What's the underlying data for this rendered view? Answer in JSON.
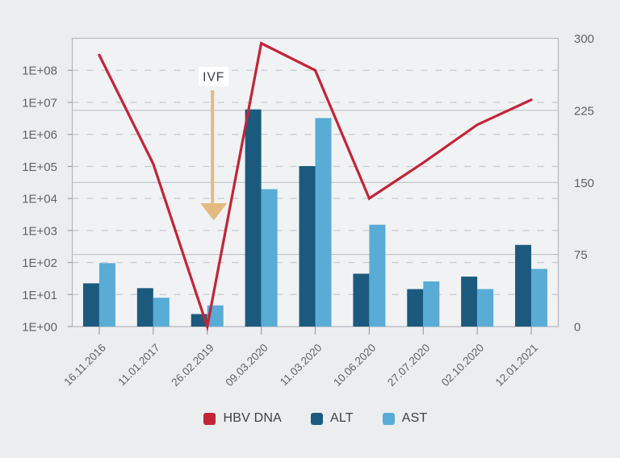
{
  "palette": {
    "page_background": "#ecedef",
    "plot_background": "#f1f2f4",
    "plot_border": "#b3b8bd",
    "dashed_grid": "#c9cdd1",
    "solid_grid": "#b7bcc1",
    "tick": "#9ba1a7",
    "axis_text": "#5e6367",
    "hbv_red": "#c32438",
    "alt_dark_blue": "#1c5a7d",
    "ast_light_blue": "#58acd5",
    "arrow_tan": "#e3ba81",
    "annotation_text": "#33373b",
    "annotation_box": "#ffffff"
  },
  "legend": {
    "items": [
      {
        "label": "HBV DNA",
        "color": "#c32438"
      },
      {
        "label": "ALT",
        "color": "#1c5a7d"
      },
      {
        "label": "AST",
        "color": "#58acd5"
      }
    ]
  },
  "annotation": {
    "text": "IVF",
    "category": "26.02.2019",
    "category_index": 2,
    "arrow_color": "#e3ba81"
  },
  "chart_data": {
    "type": "combo (bar + line)",
    "title": "",
    "categories": [
      "16.11.2016",
      "11.01.2017",
      "26.02.2019",
      "09.03.2020",
      "11.03.2020",
      "10.06.2020",
      "27.07.2020",
      "02.10.2020",
      "12.01.2021"
    ],
    "series": [
      {
        "name": "HBV DNA",
        "type": "line",
        "axis": "left-log",
        "color": "#c32438",
        "values": [
          300000000,
          120000,
          1,
          700000000,
          100000000,
          10000,
          130000,
          2000000,
          12000000
        ]
      },
      {
        "name": "ALT",
        "type": "bar",
        "axis": "right-linear",
        "color": "#1c5a7d",
        "values": [
          45,
          40,
          13,
          226,
          167,
          55,
          39,
          52,
          85
        ]
      },
      {
        "name": "AST",
        "type": "bar",
        "axis": "right-linear",
        "color": "#58acd5",
        "values": [
          66,
          30,
          22,
          143,
          217,
          106,
          47,
          39,
          60
        ]
      }
    ],
    "left_axis": {
      "scale": "log",
      "min": 1,
      "max": 1000000000,
      "tick_labels": [
        "1E+00",
        "1E+01",
        "1E+02",
        "1E+03",
        "1E+04",
        "1E+05",
        "1E+06",
        "1E+07",
        "1E+08"
      ]
    },
    "right_axis": {
      "scale": "linear",
      "min": 0,
      "max": 300,
      "ticks": [
        0,
        75,
        150,
        225,
        300
      ],
      "tick_labels": [
        "0",
        "75",
        "150",
        "225",
        "300"
      ],
      "solid_gridlines": [
        75,
        150,
        225
      ]
    },
    "grid": {
      "dashed_log_decades": true,
      "legend_position": "bottom"
    }
  }
}
